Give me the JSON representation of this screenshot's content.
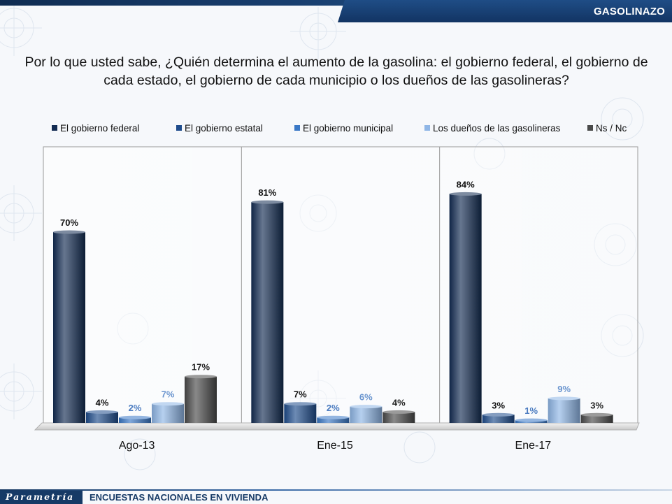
{
  "header": {
    "section_label": "GASOLINAZO",
    "question": "Por lo que usted sabe, ¿Quién determina el aumento de la gasolina: el gobierno federal, el gobierno de cada estado, el gobierno de cada municipio o los dueños de las gasolineras?"
  },
  "colors": {
    "top_bar": "#163a66",
    "tab": "#1a4477",
    "series": [
      "#132c52",
      "#1f4c8c",
      "#3a78c6",
      "#8fb6e6",
      "#4a4a4a"
    ],
    "label_text": [
      "#111111",
      "#111111",
      "#4a7bc0",
      "#6a95cf",
      "#222222"
    ]
  },
  "chart_data": {
    "type": "bar",
    "style": "3d-cylinder",
    "categories": [
      "Ago-13",
      "Ene-15",
      "Ene-17"
    ],
    "series": [
      {
        "name": "El gobierno federal",
        "values": [
          70,
          81,
          84
        ]
      },
      {
        "name": "El gobierno estatal",
        "values": [
          4,
          7,
          3
        ]
      },
      {
        "name": "El gobierno municipal",
        "values": [
          2,
          2,
          1
        ]
      },
      {
        "name": "Los dueños de las gasolineras",
        "values": [
          7,
          6,
          9
        ]
      },
      {
        "name": "Ns / Nc",
        "values": [
          17,
          4,
          3
        ]
      }
    ],
    "value_suffix": "%",
    "ylim": [
      0,
      100
    ],
    "legend_position": "top",
    "grid": false
  },
  "footer": {
    "logo_text": "Parametría",
    "label": "ENCUESTAS NACIONALES EN VIVIENDA"
  }
}
